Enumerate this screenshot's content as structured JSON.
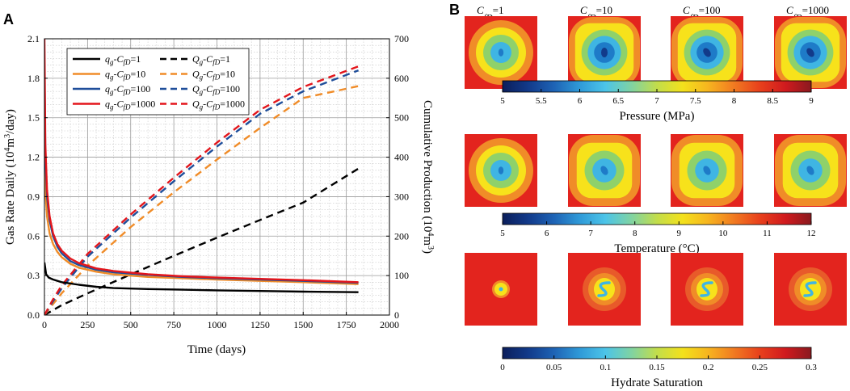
{
  "panels": {
    "a": "A",
    "b": "B"
  },
  "chart_data": [
    {
      "type": "line",
      "panel": "A",
      "xlabel": "Time (days)",
      "ylabel_left": "Gas Rate Daily (10^4m^3/day)",
      "ylabel_right": "Cumulative Production (10^4m^3)",
      "xlim": [
        0,
        2000
      ],
      "ylim_left": [
        0,
        2.1
      ],
      "ylim_right": [
        0,
        700
      ],
      "x_ticks": [
        "0",
        "250",
        "500",
        "750",
        "1000",
        "1250",
        "1500",
        "1750",
        "2000"
      ],
      "y_left_ticks": [
        "0.0",
        "0.3",
        "0.6",
        "0.9",
        "1.2",
        "1.5",
        "1.8",
        "2.1"
      ],
      "y_right_ticks": [
        "0",
        "100",
        "200",
        "300",
        "400",
        "500",
        "600",
        "700"
      ],
      "colors": {
        "cfd1": "#000000",
        "cfd10": "#F08C28",
        "cfd100": "#1F4E9A",
        "cfd1000": "#E3151B"
      },
      "legend": [
        {
          "label": "q_g-C_fD=1",
          "style": "solid",
          "color": "#000000"
        },
        {
          "label": "Q_g-C_fD=1",
          "style": "dashed",
          "color": "#000000"
        },
        {
          "label": "q_g-C_fD=10",
          "style": "solid",
          "color": "#F08C28"
        },
        {
          "label": "Q_g-C_fD=10",
          "style": "dashed",
          "color": "#F08C28"
        },
        {
          "label": "q_g-C_fD=100",
          "style": "solid",
          "color": "#1F4E9A"
        },
        {
          "label": "Q_g-C_fD=100",
          "style": "dashed",
          "color": "#1F4E9A"
        },
        {
          "label": "q_g-C_fD=1000",
          "style": "solid",
          "color": "#E3151B"
        },
        {
          "label": "Q_g-C_fD=1000",
          "style": "dashed",
          "color": "#E3151B"
        }
      ],
      "rate_series": [
        {
          "name": "q_g-C_fD=1",
          "color": "#000000",
          "axis": "left",
          "x": [
            0,
            10,
            25,
            50,
            100,
            200,
            300,
            400,
            600,
            800,
            1000,
            1250,
            1500,
            1820
          ],
          "y": [
            0.4,
            0.31,
            0.285,
            0.27,
            0.25,
            0.23,
            0.215,
            0.205,
            0.198,
            0.193,
            0.188,
            0.183,
            0.178,
            0.174
          ]
        },
        {
          "name": "q_g-C_fD=10",
          "color": "#F08C28",
          "axis": "left",
          "x": [
            0,
            5,
            15,
            30,
            50,
            75,
            100,
            150,
            200,
            300,
            400,
            600,
            800,
            1000,
            1250,
            1500,
            1820
          ],
          "y": [
            1.25,
            0.95,
            0.75,
            0.62,
            0.54,
            0.48,
            0.44,
            0.39,
            0.36,
            0.33,
            0.31,
            0.29,
            0.28,
            0.27,
            0.26,
            0.25,
            0.235
          ]
        },
        {
          "name": "q_g-C_fD=100",
          "color": "#1F4E9A",
          "axis": "left",
          "x": [
            0,
            5,
            15,
            30,
            50,
            75,
            100,
            150,
            200,
            300,
            400,
            600,
            800,
            1000,
            1250,
            1500,
            1820
          ],
          "y": [
            1.9,
            1.2,
            0.9,
            0.72,
            0.6,
            0.52,
            0.47,
            0.41,
            0.38,
            0.345,
            0.325,
            0.305,
            0.29,
            0.28,
            0.27,
            0.26,
            0.245
          ]
        },
        {
          "name": "q_g-C_fD=1000",
          "color": "#E3151B",
          "axis": "left",
          "x": [
            0,
            5,
            15,
            30,
            50,
            75,
            100,
            150,
            200,
            300,
            400,
            600,
            800,
            1000,
            1250,
            1500,
            1820
          ],
          "y": [
            2.1,
            1.3,
            0.95,
            0.75,
            0.62,
            0.54,
            0.49,
            0.43,
            0.395,
            0.355,
            0.335,
            0.31,
            0.295,
            0.285,
            0.275,
            0.265,
            0.25
          ]
        }
      ],
      "cumulative_series": [
        {
          "name": "Q_g-C_fD=1",
          "color": "#000000",
          "axis": "right",
          "x": [
            0,
            100,
            250,
            500,
            750,
            1000,
            1250,
            1500,
            1820
          ],
          "y": [
            0,
            25,
            55,
            103,
            150,
            196,
            241,
            285,
            371
          ]
        },
        {
          "name": "Q_g-C_fD=10",
          "color": "#F08C28",
          "axis": "right",
          "x": [
            0,
            50,
            100,
            250,
            500,
            750,
            1000,
            1250,
            1500,
            1820
          ],
          "y": [
            0,
            28,
            55,
            125,
            223,
            311,
            394,
            474,
            550,
            580
          ]
        },
        {
          "name": "Q_g-C_fD=100",
          "color": "#1F4E9A",
          "axis": "right",
          "x": [
            0,
            50,
            100,
            250,
            500,
            750,
            1000,
            1250,
            1500,
            1820
          ],
          "y": [
            0,
            35,
            68,
            148,
            247,
            339,
            427,
            510,
            567,
            620
          ]
        },
        {
          "name": "Q_g-C_fD=1000",
          "color": "#E3151B",
          "axis": "right",
          "x": [
            0,
            50,
            100,
            250,
            500,
            750,
            1000,
            1250,
            1500,
            1820
          ],
          "y": [
            0,
            40,
            75,
            155,
            255,
            348,
            437,
            520,
            578,
            630
          ]
        }
      ]
    },
    {
      "type": "heatmap",
      "panel": "B",
      "column_labels": [
        "1",
        "10",
        "100",
        "1000"
      ],
      "column_label_prefix": "C",
      "column_label_sub": "fD",
      "rows": [
        {
          "quantity": "Pressure (MPa)",
          "colorbar_min": 5,
          "colorbar_max": 9,
          "colorbar_ticks": [
            "5",
            "5.5",
            "6",
            "6.5",
            "7",
            "7.5",
            "8",
            "8.5",
            "9"
          ],
          "contour_levels": [
            "#F08C28",
            "#F7E21B",
            "#8FD16A",
            "#3FB5E3",
            "#1E7BC8",
            "#123A8A"
          ],
          "cells": [
            {
              "rings": 5,
              "shape": "round",
              "spot_tilt": 0
            },
            {
              "rings": 6,
              "shape": "square",
              "spot_tilt": 0
            },
            {
              "rings": 6,
              "shape": "square",
              "spot_tilt": -35
            },
            {
              "rings": 6,
              "shape": "square",
              "spot_tilt": -35
            }
          ]
        },
        {
          "quantity": "Temperature (°C)",
          "colorbar_min": 5,
          "colorbar_max": 12,
          "colorbar_ticks": [
            "5",
            "6",
            "7",
            "8",
            "9",
            "10",
            "11",
            "12"
          ],
          "contour_levels": [
            "#F08C28",
            "#F7E21B",
            "#8FD16A",
            "#3FB5E3",
            "#1E7BC8"
          ],
          "cells": [
            {
              "rings": 5,
              "shape": "round",
              "spot_tilt": 0
            },
            {
              "rings": 5,
              "shape": "square",
              "spot_tilt": -30
            },
            {
              "rings": 5,
              "shape": "square",
              "spot_tilt": -30
            },
            {
              "rings": 5,
              "shape": "square",
              "spot_tilt": -30
            }
          ]
        },
        {
          "quantity": "Hydrate Saturation",
          "colorbar_min": 0,
          "colorbar_max": 0.3,
          "colorbar_ticks": [
            "0",
            "0.05",
            "0.1",
            "0.15",
            "0.2",
            "0.25",
            "0.3"
          ],
          "contour_levels": [
            "#F08C28",
            "#F7E21B",
            "#8FD16A",
            "#3FB5E3"
          ],
          "cells": [
            {
              "rings": 2,
              "shape": "small",
              "spot_tilt": 0
            },
            {
              "rings": 3,
              "shape": "s",
              "spot_tilt": 0
            },
            {
              "rings": 3,
              "shape": "s",
              "spot_tilt": 0
            },
            {
              "rings": 3,
              "shape": "s",
              "spot_tilt": 0
            }
          ]
        }
      ],
      "colormap": [
        "#0B1E5B",
        "#123A8A",
        "#1E63B5",
        "#2F9AD8",
        "#4CC4E8",
        "#7FD3A3",
        "#C2DD4B",
        "#F3E11C",
        "#F7B41F",
        "#F17A21",
        "#E8401C",
        "#D01A1E",
        "#8A1A1F"
      ]
    }
  ]
}
